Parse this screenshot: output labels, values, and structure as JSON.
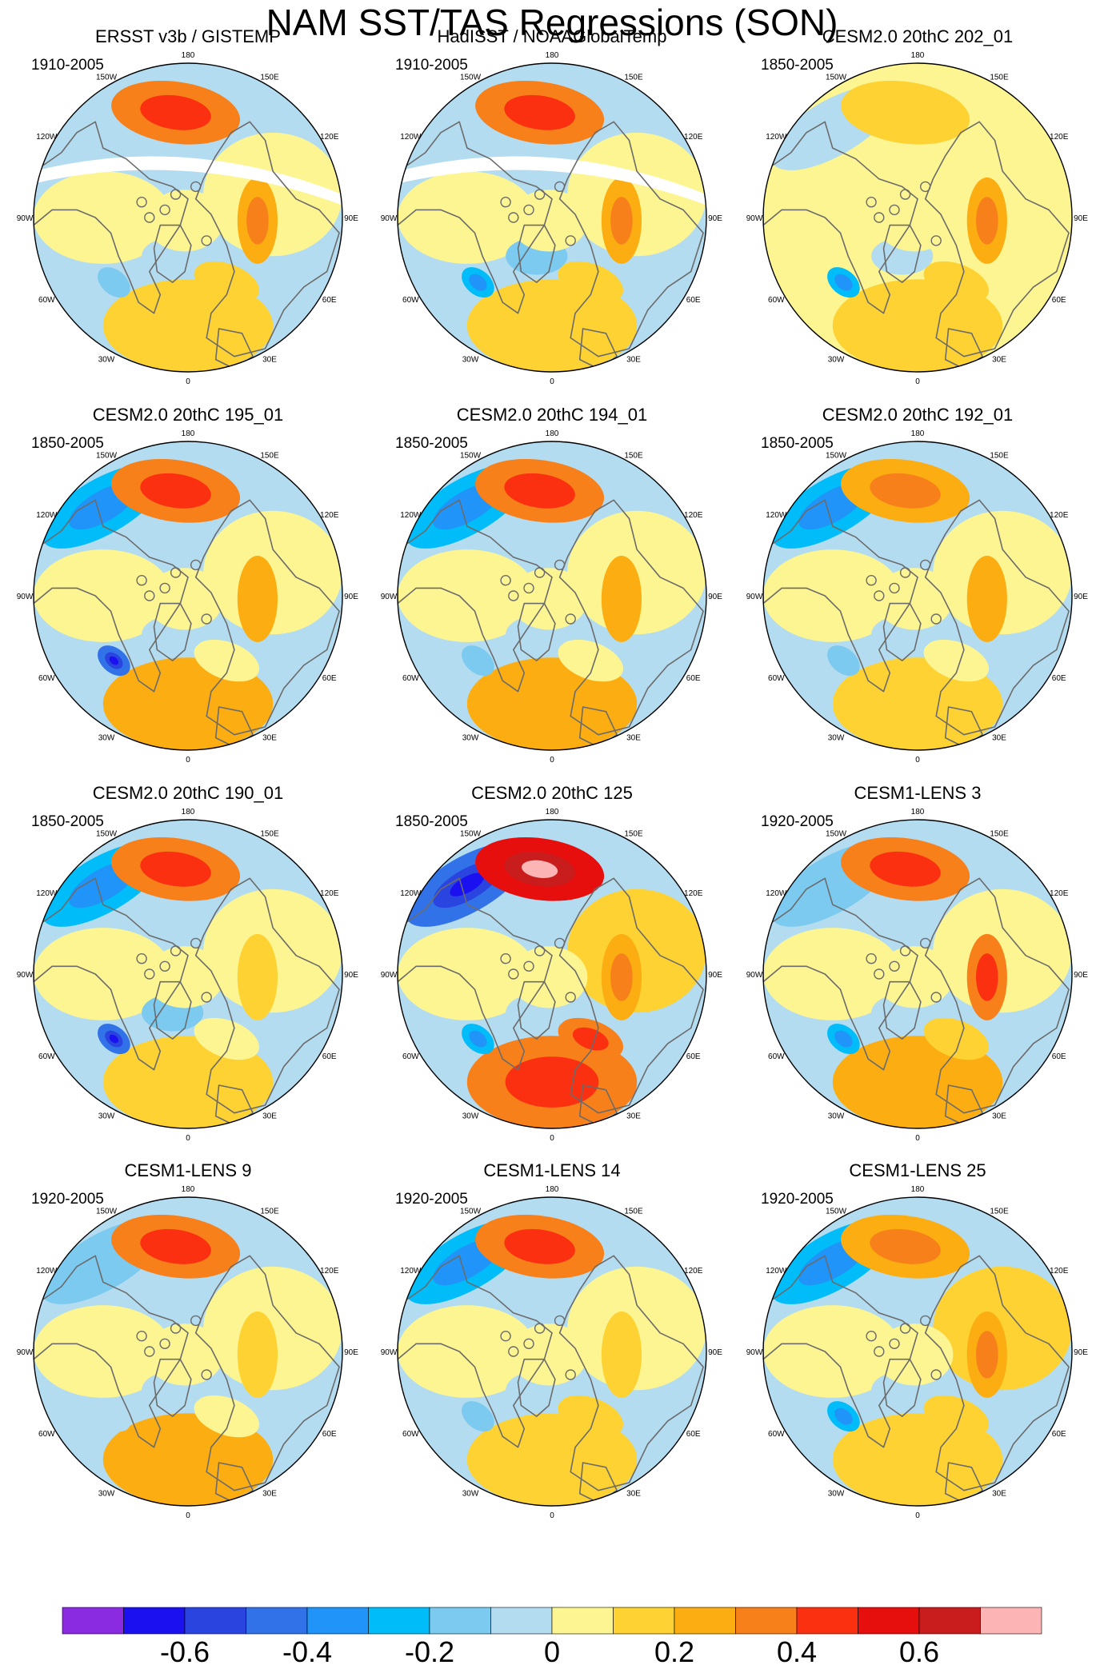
{
  "title": "NAM SST/TAS Regressions (SON)",
  "chart_data": {
    "type": "heatmap",
    "projection": "north-polar-stereographic",
    "longitude_labels": [
      "180",
      "150E",
      "120E",
      "90E",
      "60E",
      "30E",
      "0",
      "30W",
      "60W",
      "90W",
      "120W",
      "150W"
    ],
    "panels": [
      {
        "title": "ERSST v3b / GISTEMP",
        "period": "1910-2005",
        "pattern": {
          "pac": 0.35,
          "atl": 0.15,
          "sib": 0.25,
          "eur": 0.1,
          "lab": -0.2,
          "gl": -0.1,
          "arc": 0.05,
          "asia": 0.05,
          "na": 0.05,
          "ocean": -0.1,
          "npac_blue": -0.1,
          "missing": true
        }
      },
      {
        "title": "HadISST / NOAAGlobalTemp",
        "period": "1910-2005",
        "pattern": {
          "pac": 0.35,
          "atl": 0.15,
          "sib": 0.25,
          "eur": 0.1,
          "lab": -0.25,
          "gl": -0.15,
          "arc": 0.05,
          "asia": 0.05,
          "na": 0.05,
          "ocean": -0.05,
          "npac_blue": -0.1,
          "missing": true
        }
      },
      {
        "title": "CESM2.0 20thC 202_01",
        "period": "1850-2005",
        "pattern": {
          "pac": 0.15,
          "atl": 0.1,
          "sib": 0.25,
          "eur": 0.1,
          "lab": -0.25,
          "gl": -0.05,
          "arc": 0.05,
          "asia": 0.05,
          "na": 0.05,
          "ocean": 0.05,
          "npac_blue": -0.1,
          "missing": false
        }
      },
      {
        "title": "CESM2.0 20thC 195_01",
        "period": "1850-2005",
        "pattern": {
          "pac": 0.3,
          "atl": 0.2,
          "sib": 0.2,
          "eur": 0.05,
          "lab": -0.45,
          "gl": -0.1,
          "arc": 0.05,
          "asia": 0.05,
          "na": 0.05,
          "ocean": -0.05,
          "npac_blue": -0.25,
          "missing": false
        }
      },
      {
        "title": "CESM2.0 20thC 194_01",
        "period": "1850-2005",
        "pattern": {
          "pac": 0.3,
          "atl": 0.2,
          "sib": 0.2,
          "eur": 0.05,
          "lab": -0.2,
          "gl": -0.1,
          "arc": 0.05,
          "asia": 0.05,
          "na": 0.05,
          "ocean": -0.05,
          "npac_blue": -0.25,
          "missing": false
        }
      },
      {
        "title": "CESM2.0 20thC 192_01",
        "period": "1850-2005",
        "pattern": {
          "pac": 0.25,
          "atl": 0.15,
          "sib": 0.2,
          "eur": 0.05,
          "lab": -0.15,
          "gl": -0.1,
          "arc": 0.05,
          "asia": 0.05,
          "na": 0.05,
          "ocean": -0.05,
          "npac_blue": -0.25,
          "missing": false
        }
      },
      {
        "title": "CESM2.0 20thC 190_01",
        "period": "1850-2005",
        "pattern": {
          "pac": 0.3,
          "atl": 0.15,
          "sib": 0.1,
          "eur": 0.05,
          "lab": -0.5,
          "gl": -0.15,
          "arc": 0.05,
          "asia": 0.05,
          "na": 0.05,
          "ocean": -0.05,
          "npac_blue": -0.3,
          "missing": false
        }
      },
      {
        "title": "CESM2.0 20thC 125",
        "period": "1850-2005",
        "pattern": {
          "pac": 0.55,
          "atl": 0.3,
          "sib": 0.25,
          "eur": 0.3,
          "lab": -0.3,
          "gl": -0.1,
          "arc": 0.05,
          "asia": 0.1,
          "na": 0.05,
          "ocean": -0.05,
          "npac_blue": -0.5,
          "missing": false
        }
      },
      {
        "title": "CESM1-LENS 3",
        "period": "1920-2005",
        "pattern": {
          "pac": 0.3,
          "atl": 0.2,
          "sib": 0.3,
          "eur": 0.1,
          "lab": -0.25,
          "gl": -0.1,
          "arc": 0.05,
          "asia": 0.05,
          "na": 0.05,
          "ocean": -0.05,
          "npac_blue": -0.15,
          "missing": false
        }
      },
      {
        "title": "CESM1-LENS 9",
        "period": "1920-2005",
        "pattern": {
          "pac": 0.3,
          "atl": 0.2,
          "sib": 0.1,
          "eur": 0.05,
          "lab": -0.1,
          "gl": -0.05,
          "arc": 0.05,
          "asia": 0.05,
          "na": 0.05,
          "ocean": -0.05,
          "npac_blue": -0.2,
          "missing": false
        }
      },
      {
        "title": "CESM1-LENS 14",
        "period": "1920-2005",
        "pattern": {
          "pac": 0.3,
          "atl": 0.1,
          "sib": 0.15,
          "eur": 0.1,
          "lab": -0.15,
          "gl": -0.05,
          "arc": 0.05,
          "asia": 0.05,
          "na": 0.05,
          "ocean": -0.05,
          "npac_blue": -0.3,
          "missing": false
        }
      },
      {
        "title": "CESM1-LENS 25",
        "period": "1920-2005",
        "pattern": {
          "pac": 0.25,
          "atl": 0.15,
          "sib": 0.25,
          "eur": 0.1,
          "lab": -0.3,
          "gl": -0.1,
          "arc": 0.05,
          "asia": 0.1,
          "na": 0.05,
          "ocean": -0.05,
          "npac_blue": -0.3,
          "missing": false
        }
      }
    ],
    "colorbar": {
      "colors": [
        "#8a2be2",
        "#1a10f0",
        "#2a44e0",
        "#3272e8",
        "#2094f8",
        "#00bcf8",
        "#7ccaf0",
        "#b4dcf0",
        "#fdf591",
        "#fdd232",
        "#fbad12",
        "#f7801a",
        "#fb3010",
        "#e70e0e",
        "#c91d1d",
        "#fcb4b4"
      ],
      "levels": [
        -0.7,
        -0.6,
        -0.5,
        -0.4,
        -0.3,
        -0.2,
        -0.1,
        0,
        0.1,
        0.2,
        0.3,
        0.4,
        0.5,
        0.6,
        0.7
      ],
      "tick_labels": [
        "-0.6",
        "-0.4",
        "-0.2",
        "0",
        "0.2",
        "0.4",
        "0.6"
      ],
      "tick_values": [
        -0.6,
        -0.4,
        -0.2,
        0,
        0.2,
        0.4,
        0.6
      ]
    }
  }
}
